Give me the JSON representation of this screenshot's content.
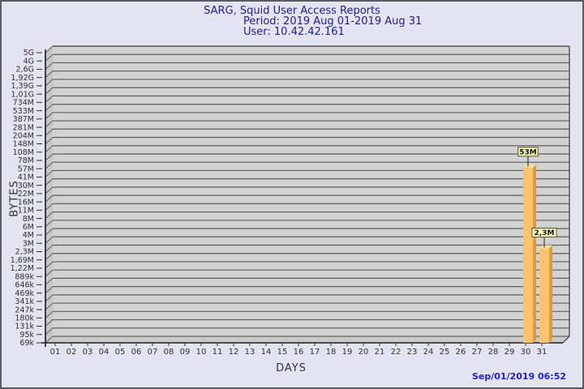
{
  "window": {
    "background": "#e3e3f2",
    "border_color": "#5a5a64"
  },
  "chart_data": {
    "type": "bar",
    "title": "SARG, Squid User Access Reports",
    "subtitle_period": "Period: 2019 Aug 01-2019 Aug 31",
    "subtitle_user": "User: 10.42.42.161",
    "xlabel": "DAYS",
    "ylabel": "BYTES",
    "grid": true,
    "legend": false,
    "categories": [
      "01",
      "02",
      "03",
      "04",
      "05",
      "06",
      "07",
      "08",
      "09",
      "10",
      "11",
      "12",
      "13",
      "14",
      "15",
      "16",
      "17",
      "18",
      "19",
      "20",
      "21",
      "22",
      "23",
      "24",
      "25",
      "26",
      "27",
      "28",
      "29",
      "30",
      "31"
    ],
    "values": [
      0,
      0,
      0,
      0,
      0,
      0,
      0,
      0,
      0,
      0,
      0,
      0,
      0,
      0,
      0,
      0,
      0,
      0,
      0,
      0,
      0,
      0,
      0,
      0,
      0,
      0,
      0,
      0,
      0,
      53000000,
      2300000
    ],
    "value_labels": [
      "",
      "",
      "",
      "",
      "",
      "",
      "",
      "",
      "",
      "",
      "",
      "",
      "",
      "",
      "",
      "",
      "",
      "",
      "",
      "",
      "",
      "",
      "",
      "",
      "",
      "",
      "",
      "",
      "",
      "53M",
      "2,3M"
    ],
    "y_tick_labels": [
      "5G",
      "4G",
      "2,6G",
      "1,92G",
      "1,39G",
      "1,01G",
      "734M",
      "533M",
      "387M",
      "281M",
      "204M",
      "148M",
      "108M",
      "78M",
      "57M",
      "41M",
      "30M",
      "22M",
      "16M",
      "11M",
      "8M",
      "6M",
      "4M",
      "3M",
      "2,3M",
      "1,69M",
      "1,22M",
      "889k",
      "646k",
      "469k",
      "341k",
      "247k",
      "180k",
      "131k",
      "95k",
      "69k"
    ],
    "y_tick_values": [
      5000000000,
      4000000000,
      2600000000,
      1920000000,
      1390000000,
      1010000000,
      734000000,
      533000000,
      387000000,
      281000000,
      204000000,
      148000000,
      108000000,
      78000000,
      57000000,
      41000000,
      30000000,
      22000000,
      16000000,
      11000000,
      8000000,
      6000000,
      4000000,
      3000000,
      2300000,
      1690000,
      1220000,
      889000,
      646000,
      469000,
      341000,
      247000,
      180000,
      131000,
      95000,
      69000
    ],
    "colors": {
      "title": "#202090",
      "timestamp": "#2222cc",
      "axis_text": "#303030",
      "plot_bg": "#d2d2d2",
      "wall": "#c6c6c6",
      "floor": "#c9c9c9",
      "gridline": "#5e5e5e",
      "axis": "#1a1a1a",
      "edge": "#3a3a3a",
      "bar_front": "#fcc46c",
      "bar_side": "#d89c44",
      "bar_top": "#ffdf9e",
      "bar_label_bg": "#ffffc4",
      "bar_label_border": "#55552a"
    }
  },
  "footer": {
    "timestamp": "Sep/01/2019 06:52"
  }
}
